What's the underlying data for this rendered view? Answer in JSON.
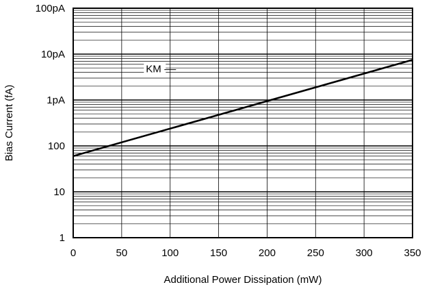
{
  "chart_data": {
    "type": "line",
    "title": "",
    "xlabel": "Additional Power Dissipation (mW)",
    "ylabel": "Bias Current (fA)",
    "x_scale": "linear",
    "y_scale": "log",
    "xlim": [
      0,
      350
    ],
    "ylim": [
      1,
      100000
    ],
    "x_ticks": [
      0,
      50,
      100,
      150,
      200,
      250,
      300,
      350
    ],
    "x_tick_labels": [
      "0",
      "50",
      "100",
      "150",
      "200",
      "250",
      "300",
      "350"
    ],
    "y_ticks": [
      1,
      10,
      100,
      1000,
      10000,
      100000
    ],
    "y_tick_labels": [
      "1",
      "10",
      "100",
      "1pA",
      "10pA",
      "100pA"
    ],
    "grid": true,
    "series": [
      {
        "name": "KM",
        "x": [
          0,
          350
        ],
        "y": [
          60,
          7500
        ]
      }
    ],
    "annotations": [
      {
        "text": "KM",
        "x": 75,
        "y": 4000
      }
    ],
    "colors": {
      "line": "#000000",
      "grid": "#000000",
      "background": "#ffffff"
    }
  }
}
